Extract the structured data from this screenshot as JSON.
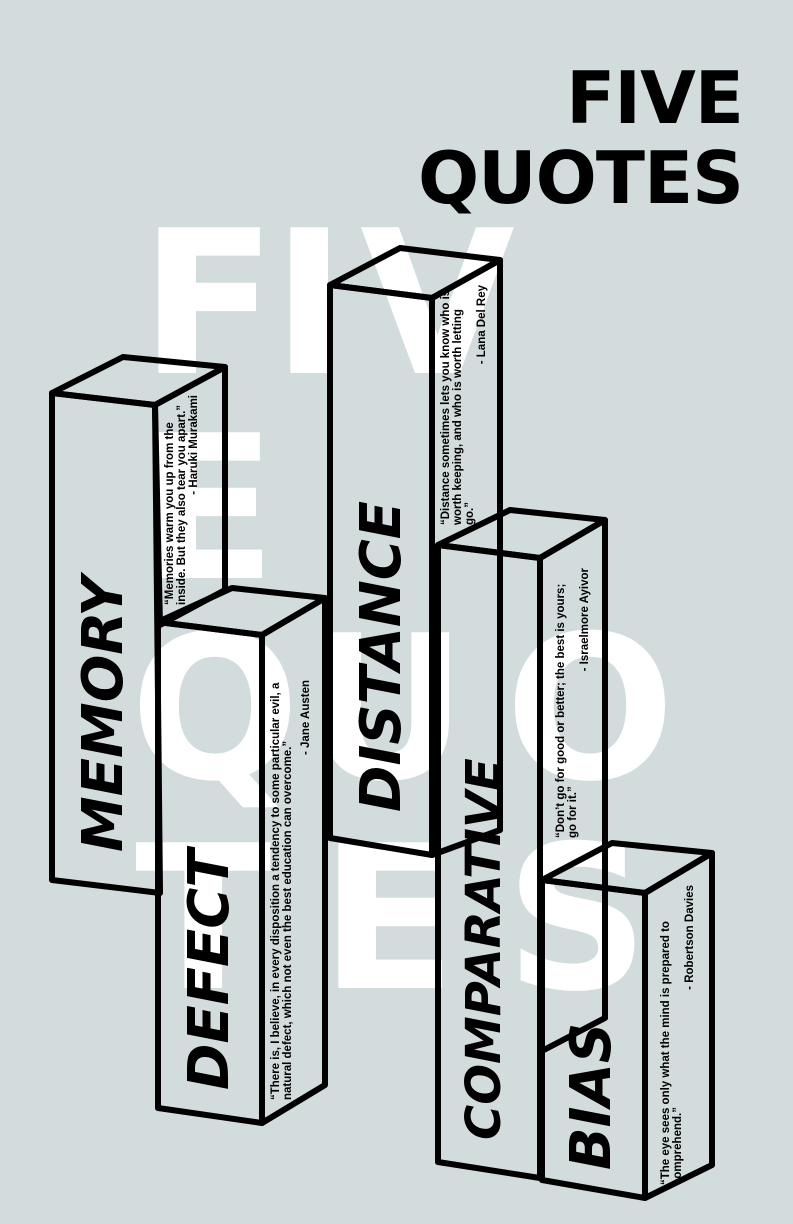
{
  "title": {
    "line1": "FIVE",
    "line2": "QUOTES"
  },
  "background": {
    "color": "#d3dcdc",
    "watermark_color": "#ffffff",
    "watermark_letters": [
      "F",
      "I",
      "V",
      "E",
      "Q",
      "U",
      "O",
      "T",
      "E",
      "S"
    ]
  },
  "boxes": [
    {
      "id": "memory",
      "word": "MEMORY",
      "quote": "“Memories warm you up from the inside. But they also tear you apart.”",
      "author": "- Haruki Murakami"
    },
    {
      "id": "defect",
      "word": "DEFECT",
      "quote": "“There is, I believe, in every disposition a tendency to some particular evil, a natural defect, which not even the best education can overcome.”",
      "author": "- Jane Austen"
    },
    {
      "id": "distance",
      "word": "DISTANCE",
      "quote": "“Distance sometimes lets you know who is worth keeping, and who is worth letting go.”",
      "author": "- Lana Del Rey"
    },
    {
      "id": "comparative",
      "word": "COMPARATIVE",
      "quote": "“Don’t go for good or better; the best is yours; go for it.”",
      "author": "- Israelmore Ayivor"
    },
    {
      "id": "bias",
      "word": "BIAS",
      "quote": "“The eye sees only what the mind is prepared to comprehend.”",
      "author": "- Robertson Davies"
    }
  ]
}
